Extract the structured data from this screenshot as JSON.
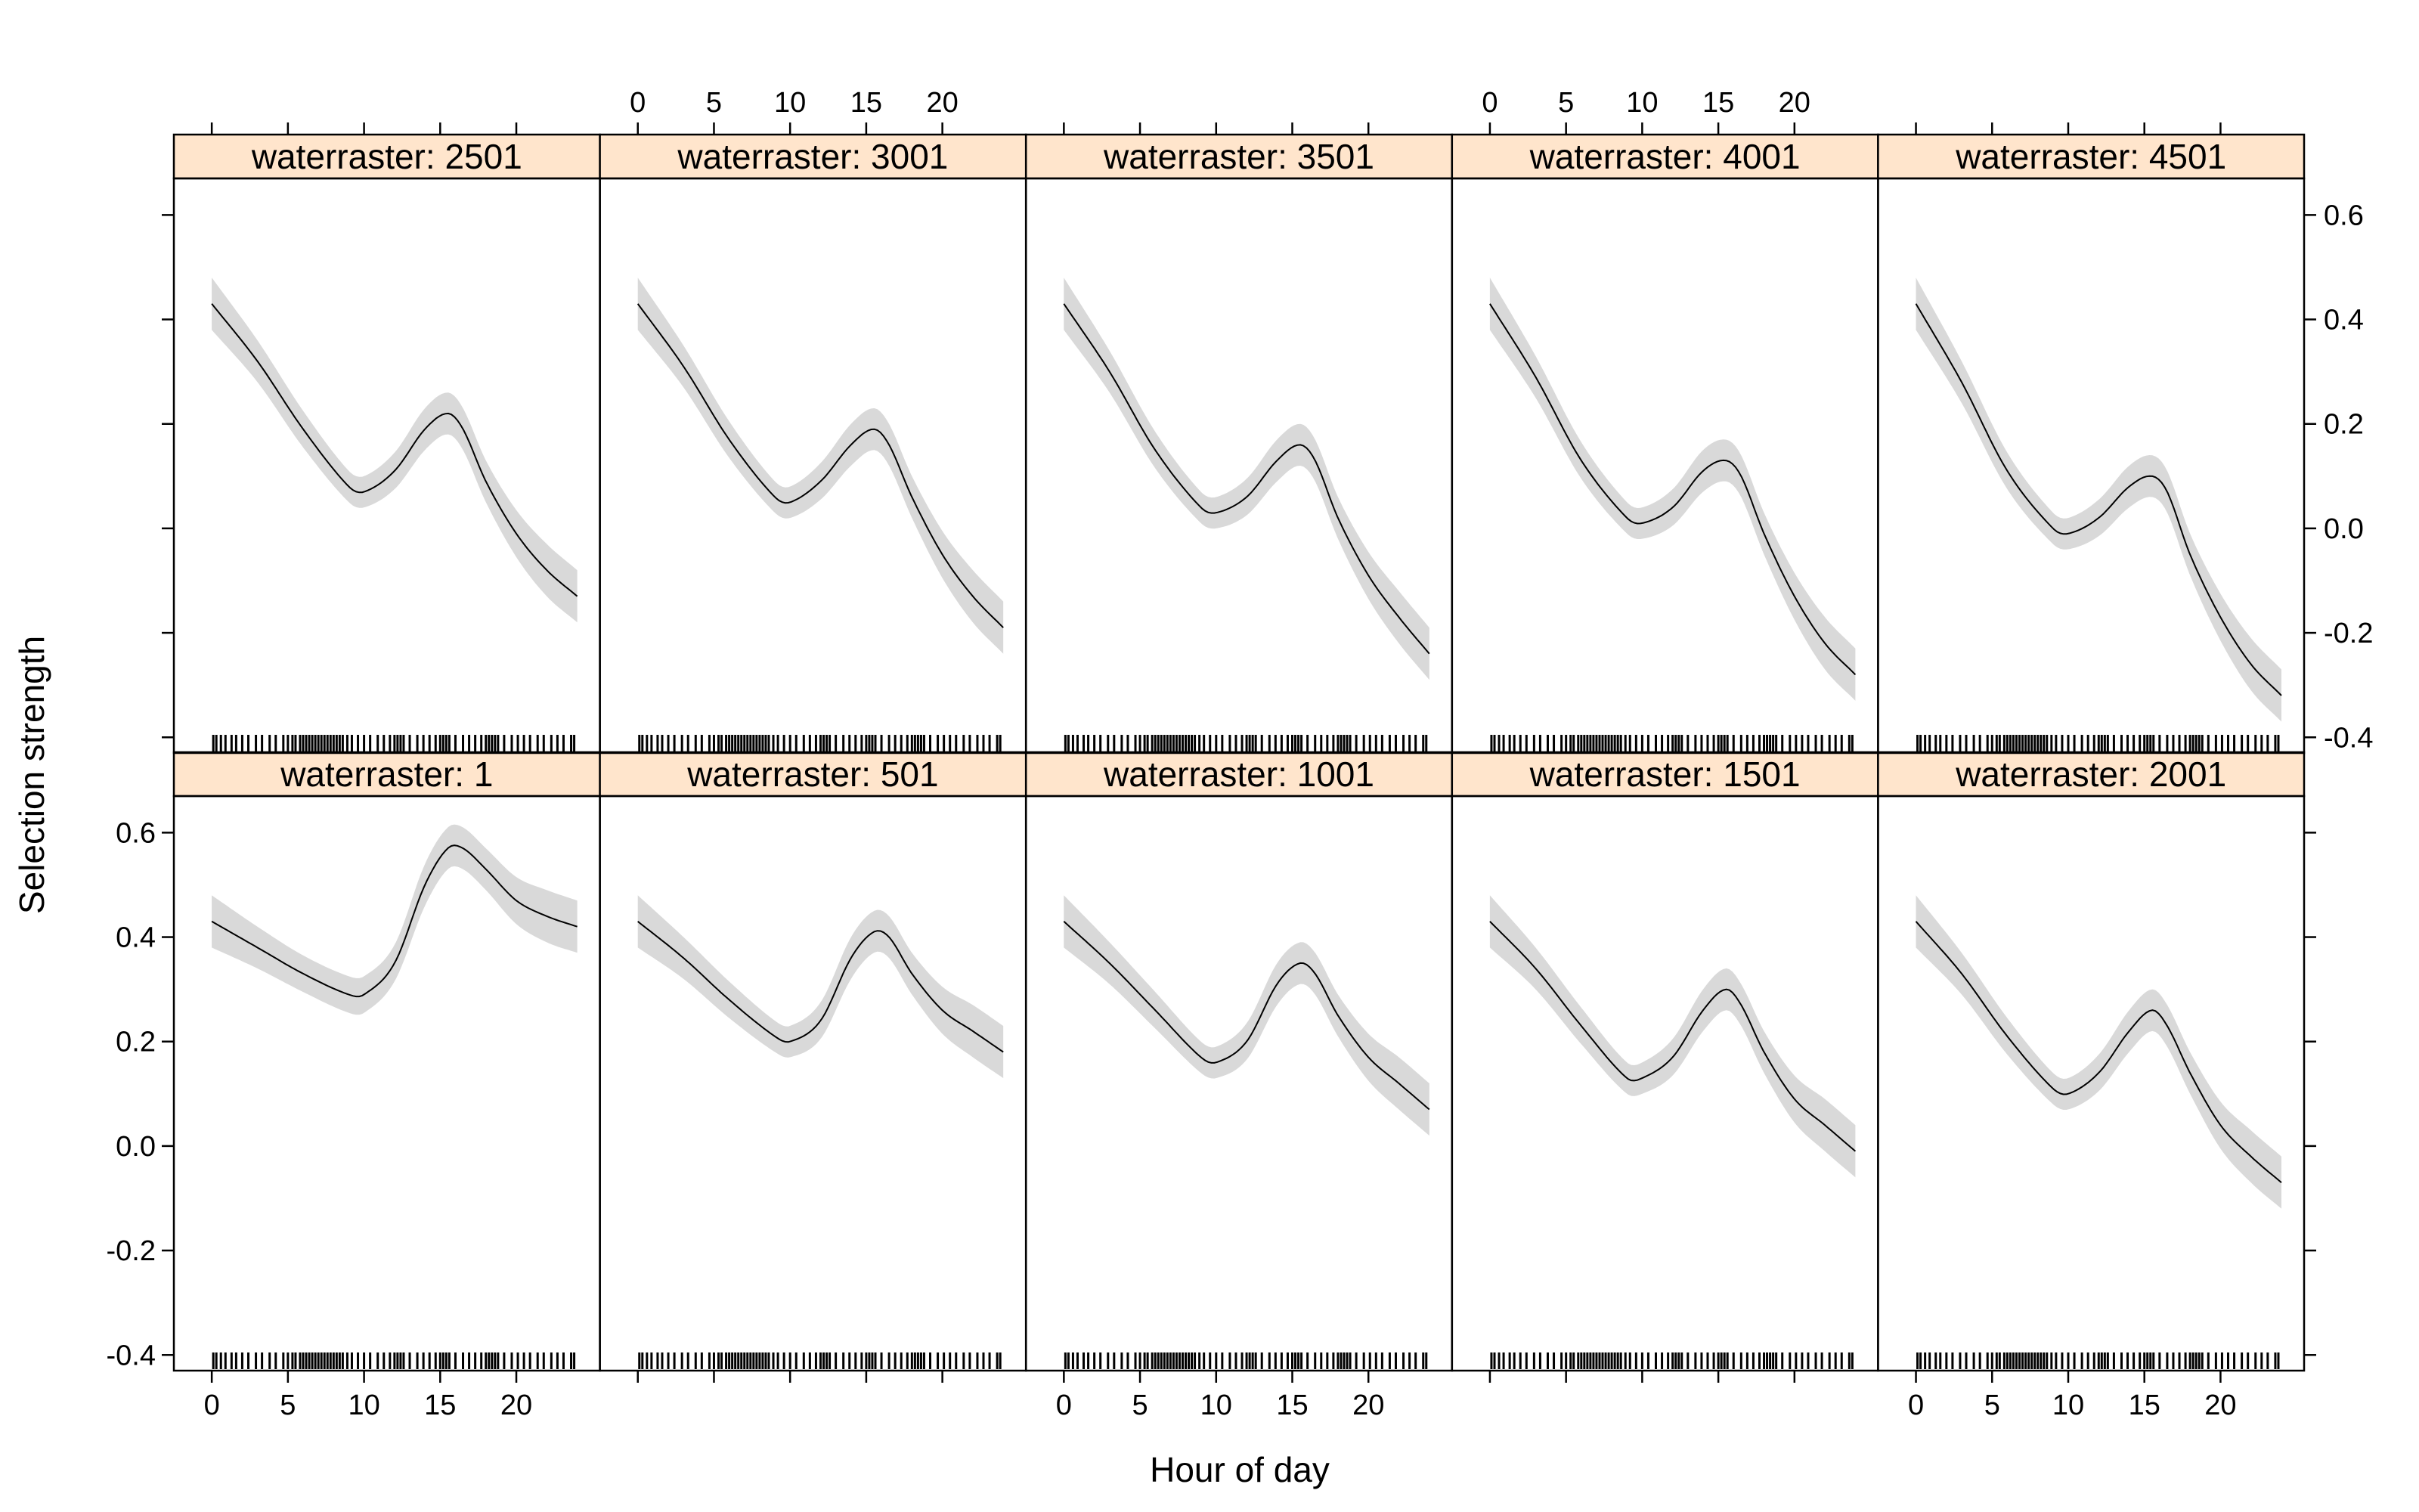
{
  "chart_data": {
    "type": "line",
    "xlabel": "Hour of day",
    "ylabel": "Selection strength",
    "xlim": [
      -1,
      24
    ],
    "ylim": [
      -0.43,
      0.67
    ],
    "x_ticks": [
      0,
      5,
      10,
      15,
      20
    ],
    "y_ticks": [
      -0.4,
      -0.2,
      0.0,
      0.2,
      0.4,
      0.6
    ],
    "y_tick_labels": [
      "-0.4",
      "-0.2",
      "0.0",
      "0.2",
      "0.4",
      "0.6"
    ],
    "grid": false,
    "strip_color": "#FFE5CC",
    "band_color": "#D9D9D9",
    "line_color": "#000000",
    "rug_hours": [
      0.1,
      0.3,
      0.6,
      0.9,
      1.3,
      1.6,
      2.0,
      2.4,
      2.9,
      3.3,
      3.8,
      4.2,
      4.7,
      5.0,
      5.3,
      5.5,
      5.8,
      6.0,
      6.2,
      6.4,
      6.6,
      6.8,
      7.0,
      7.2,
      7.4,
      7.6,
      7.8,
      8.0,
      8.2,
      8.4,
      8.6,
      8.9,
      9.2,
      9.6,
      10.0,
      10.4,
      10.9,
      11.3,
      11.7,
      12.0,
      12.2,
      12.4,
      12.6,
      13.0,
      13.5,
      13.9,
      14.3,
      14.7,
      15.0,
      15.2,
      15.4,
      15.6,
      16.0,
      16.5,
      16.9,
      17.3,
      17.7,
      18.0,
      18.2,
      18.4,
      18.6,
      18.8,
      19.2,
      19.7,
      20.1,
      20.5,
      20.9,
      21.4,
      21.8,
      22.3,
      22.7,
      23.1,
      23.6,
      23.8
    ],
    "panels": [
      {
        "label": "waterraster: 1",
        "x": [
          0,
          3,
          6,
          9,
          10,
          12,
          14,
          15.5,
          16.5,
          18,
          20,
          22,
          24
        ],
        "y": [
          0.43,
          0.38,
          0.33,
          0.29,
          0.29,
          0.35,
          0.5,
          0.57,
          0.57,
          0.53,
          0.47,
          0.44,
          0.42
        ],
        "ci_halfwidth": [
          0.05,
          0.04,
          0.035,
          0.035,
          0.035,
          0.035,
          0.04,
          0.04,
          0.04,
          0.04,
          0.045,
          0.05,
          0.05
        ]
      },
      {
        "label": "waterraster: 501",
        "x": [
          0,
          3,
          6,
          9,
          10,
          12,
          14,
          15.5,
          16.5,
          18,
          20,
          22,
          24
        ],
        "y": [
          0.43,
          0.36,
          0.28,
          0.21,
          0.2,
          0.24,
          0.36,
          0.41,
          0.4,
          0.33,
          0.26,
          0.22,
          0.18
        ],
        "ci_halfwidth": [
          0.05,
          0.04,
          0.035,
          0.03,
          0.03,
          0.035,
          0.04,
          0.04,
          0.04,
          0.04,
          0.045,
          0.05,
          0.05
        ]
      },
      {
        "label": "waterraster: 1001",
        "x": [
          0,
          3,
          6,
          9,
          10,
          12,
          14,
          15.5,
          16.5,
          18,
          20,
          22,
          24
        ],
        "y": [
          0.43,
          0.35,
          0.26,
          0.17,
          0.16,
          0.2,
          0.31,
          0.35,
          0.33,
          0.25,
          0.17,
          0.12,
          0.07
        ],
        "ci_halfwidth": [
          0.05,
          0.04,
          0.035,
          0.03,
          0.03,
          0.035,
          0.04,
          0.04,
          0.04,
          0.04,
          0.045,
          0.05,
          0.05
        ]
      },
      {
        "label": "waterraster: 1501",
        "x": [
          0,
          3,
          6,
          9,
          10,
          12,
          14,
          15.5,
          16.5,
          18,
          20,
          22,
          24
        ],
        "y": [
          0.43,
          0.34,
          0.23,
          0.13,
          0.13,
          0.17,
          0.26,
          0.3,
          0.27,
          0.18,
          0.09,
          0.04,
          -0.01
        ],
        "ci_halfwidth": [
          0.05,
          0.04,
          0.035,
          0.03,
          0.03,
          0.035,
          0.04,
          0.04,
          0.04,
          0.04,
          0.045,
          0.05,
          0.05
        ]
      },
      {
        "label": "waterraster: 2001",
        "x": [
          0,
          3,
          6,
          9,
          10,
          12,
          14,
          15.5,
          16.5,
          18,
          20,
          22,
          24
        ],
        "y": [
          0.43,
          0.33,
          0.21,
          0.11,
          0.1,
          0.14,
          0.22,
          0.26,
          0.23,
          0.14,
          0.04,
          -0.02,
          -0.07
        ],
        "ci_halfwidth": [
          0.05,
          0.04,
          0.035,
          0.03,
          0.03,
          0.035,
          0.04,
          0.04,
          0.04,
          0.04,
          0.045,
          0.05,
          0.05
        ]
      },
      {
        "label": "waterraster: 2501",
        "x": [
          0,
          3,
          6,
          9,
          10,
          12,
          14,
          15.5,
          16.5,
          18,
          20,
          22,
          24
        ],
        "y": [
          0.43,
          0.32,
          0.19,
          0.08,
          0.07,
          0.11,
          0.19,
          0.22,
          0.19,
          0.09,
          -0.01,
          -0.08,
          -0.13
        ],
        "ci_halfwidth": [
          0.05,
          0.04,
          0.035,
          0.03,
          0.03,
          0.035,
          0.04,
          0.04,
          0.04,
          0.04,
          0.045,
          0.05,
          0.05
        ]
      },
      {
        "label": "waterraster: 3001",
        "x": [
          0,
          3,
          6,
          9,
          10,
          12,
          14,
          15.5,
          16.5,
          18,
          20,
          22,
          24
        ],
        "y": [
          0.43,
          0.31,
          0.17,
          0.06,
          0.05,
          0.09,
          0.16,
          0.19,
          0.16,
          0.06,
          -0.05,
          -0.13,
          -0.19
        ],
        "ci_halfwidth": [
          0.05,
          0.04,
          0.035,
          0.03,
          0.03,
          0.035,
          0.04,
          0.04,
          0.04,
          0.04,
          0.045,
          0.05,
          0.05
        ]
      },
      {
        "label": "waterraster: 3501",
        "x": [
          0,
          3,
          6,
          9,
          10,
          12,
          14,
          15.5,
          16.5,
          18,
          20,
          22,
          24
        ],
        "y": [
          0.43,
          0.3,
          0.15,
          0.04,
          0.03,
          0.06,
          0.13,
          0.16,
          0.13,
          0.02,
          -0.09,
          -0.17,
          -0.24
        ],
        "ci_halfwidth": [
          0.05,
          0.04,
          0.035,
          0.03,
          0.03,
          0.035,
          0.04,
          0.04,
          0.04,
          0.04,
          0.045,
          0.05,
          0.05
        ]
      },
      {
        "label": "waterraster: 4001",
        "x": [
          0,
          3,
          6,
          9,
          10,
          12,
          14,
          15.5,
          16.5,
          18,
          20,
          22,
          24
        ],
        "y": [
          0.43,
          0.29,
          0.13,
          0.02,
          0.01,
          0.04,
          0.11,
          0.13,
          0.1,
          -0.01,
          -0.13,
          -0.22,
          -0.28
        ],
        "ci_halfwidth": [
          0.05,
          0.04,
          0.035,
          0.03,
          0.03,
          0.035,
          0.04,
          0.04,
          0.04,
          0.04,
          0.045,
          0.05,
          0.05
        ]
      },
      {
        "label": "waterraster: 4501",
        "x": [
          0,
          3,
          6,
          9,
          10,
          12,
          14,
          15.5,
          16.5,
          18,
          20,
          22,
          24
        ],
        "y": [
          0.43,
          0.28,
          0.11,
          0.0,
          -0.01,
          0.02,
          0.08,
          0.1,
          0.07,
          -0.05,
          -0.17,
          -0.26,
          -0.32
        ],
        "ci_halfwidth": [
          0.05,
          0.04,
          0.035,
          0.03,
          0.03,
          0.035,
          0.04,
          0.04,
          0.04,
          0.04,
          0.045,
          0.05,
          0.05
        ]
      }
    ]
  }
}
